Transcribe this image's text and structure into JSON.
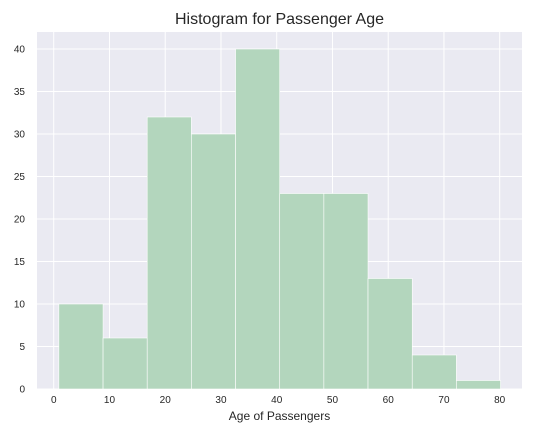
{
  "chart_data": {
    "type": "bar",
    "title": "Histogram for Passenger Age",
    "xlabel": "Age of Passengers",
    "ylabel": "",
    "bins": [
      {
        "x0": 0.92,
        "x1": 8.85,
        "count": 10
      },
      {
        "x0": 8.85,
        "x1": 16.77,
        "count": 6
      },
      {
        "x0": 16.77,
        "x1": 24.69,
        "count": 32
      },
      {
        "x0": 24.69,
        "x1": 32.62,
        "count": 30
      },
      {
        "x0": 32.62,
        "x1": 40.54,
        "count": 40
      },
      {
        "x0": 40.54,
        "x1": 48.46,
        "count": 23
      },
      {
        "x0": 48.46,
        "x1": 56.38,
        "count": 23
      },
      {
        "x0": 56.38,
        "x1": 64.31,
        "count": 13
      },
      {
        "x0": 64.31,
        "x1": 72.23,
        "count": 4
      },
      {
        "x0": 72.23,
        "x1": 80.15,
        "count": 1
      }
    ],
    "xlim": [
      -3,
      84
    ],
    "ylim": [
      0,
      42
    ],
    "xticks": [
      "0",
      "10",
      "20",
      "30",
      "40",
      "50",
      "60",
      "70",
      "80"
    ],
    "yticks": [
      "0",
      "5",
      "10",
      "15",
      "20",
      "25",
      "30",
      "35",
      "40"
    ],
    "grid": true,
    "legend": "none",
    "colors": {
      "background": "#eaeaf2",
      "bar_fill": "#b3d6bd",
      "grid": "#ffffff"
    }
  }
}
